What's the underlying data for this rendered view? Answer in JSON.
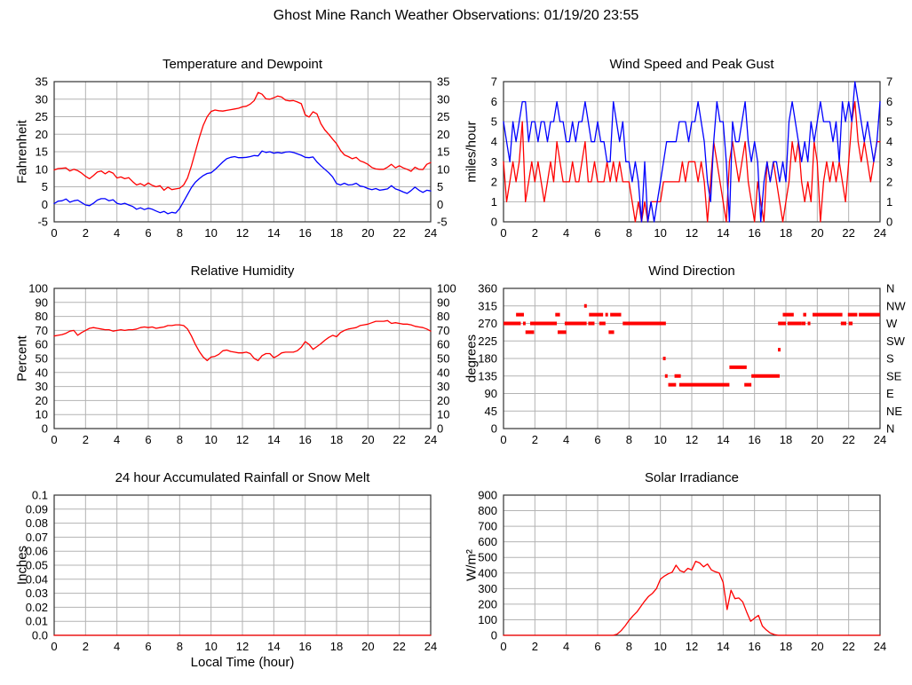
{
  "page": {
    "title": "Ghost Mine Ranch Weather Observations: 01/19/20 23:55"
  },
  "colors": {
    "red": "#ff0000",
    "blue": "#0000ff",
    "grid": "#b3b3b3",
    "frame": "#333333"
  },
  "chart_data": [
    {
      "id": "temperature-dewpoint",
      "type": "line",
      "title": "Temperature and Dewpoint",
      "ylabel": "Fahrenheit",
      "xlim": [
        0,
        24
      ],
      "ylim": [
        -5,
        35
      ],
      "xtick_labels": [
        "0",
        "2",
        "4",
        "6",
        "8",
        "10",
        "12",
        "14",
        "16",
        "18",
        "20",
        "22",
        "24"
      ],
      "ytick_labels": [
        "-5",
        "0",
        "5",
        "10",
        "15",
        "20",
        "25",
        "30",
        "35"
      ],
      "ytick_labels_right": [
        "-5",
        "0",
        "5",
        "10",
        "15",
        "20",
        "25",
        "30",
        "35"
      ],
      "grid": true,
      "legend": "none",
      "series": [
        {
          "name": "Temperature",
          "color": "#ff0000",
          "x0": 0,
          "dx": 0.25,
          "values": [
            9.8,
            10.2,
            10.3,
            10.4,
            9.5,
            10.0,
            9.6,
            8.9,
            8.0,
            7.3,
            8.2,
            9.2,
            9.5,
            8.7,
            9.4,
            8.9,
            7.5,
            7.8,
            7.3,
            7.6,
            6.5,
            5.5,
            5.9,
            5.3,
            6.1,
            5.4,
            5.0,
            5.3,
            4.0,
            4.9,
            4.2,
            4.4,
            4.6,
            5.5,
            7.5,
            11.0,
            15.0,
            19.0,
            22.5,
            25.0,
            26.5,
            26.9,
            26.7,
            26.6,
            26.8,
            27.0,
            27.2,
            27.4,
            27.8,
            28.0,
            28.6,
            29.6,
            31.9,
            31.4,
            30.1,
            30.0,
            30.4,
            30.9,
            30.6,
            29.7,
            29.5,
            29.6,
            29.2,
            28.7,
            25.5,
            24.9,
            26.4,
            25.8,
            23.0,
            21.2,
            20.0,
            18.6,
            17.3,
            15.4,
            14.1,
            13.6,
            13.0,
            13.4,
            12.4,
            12.0,
            11.4,
            10.5,
            10.1,
            10.0,
            10.0,
            10.6,
            11.4,
            10.4,
            11.0,
            10.4,
            10.0,
            9.4,
            10.6,
            10.0,
            9.9,
            11.4,
            11.9
          ]
        },
        {
          "name": "Dewpoint",
          "color": "#0000ff",
          "x0": 0,
          "dx": 0.25,
          "values": [
            0.2,
            0.9,
            1.0,
            1.5,
            0.6,
            1.0,
            1.2,
            0.5,
            -0.2,
            -0.4,
            0.3,
            1.2,
            1.6,
            1.6,
            1.0,
            1.3,
            0.3,
            0.0,
            0.3,
            -0.2,
            -0.6,
            -1.4,
            -1.0,
            -1.5,
            -1.1,
            -1.4,
            -1.9,
            -2.4,
            -2.0,
            -2.7,
            -2.3,
            -2.5,
            -1.2,
            0.8,
            2.8,
            4.8,
            6.3,
            7.3,
            8.2,
            8.8,
            9.0,
            9.9,
            11.0,
            12.1,
            13.0,
            13.4,
            13.6,
            13.3,
            13.3,
            13.4,
            13.6,
            13.9,
            13.8,
            15.2,
            14.8,
            15.0,
            14.6,
            14.8,
            14.6,
            14.9,
            15.0,
            14.8,
            14.4,
            14.0,
            13.4,
            13.3,
            13.5,
            12.1,
            11.0,
            10.0,
            9.0,
            7.8,
            5.9,
            5.5,
            6.0,
            5.5,
            5.6,
            6.0,
            5.2,
            5.0,
            4.5,
            4.2,
            4.5,
            4.0,
            4.2,
            4.4,
            5.3,
            4.4,
            4.0,
            3.5,
            3.1,
            3.9,
            4.9,
            4.0,
            3.4,
            4.0,
            3.8
          ]
        }
      ]
    },
    {
      "id": "wind-speed-gust",
      "type": "line",
      "title": "Wind Speed and Peak Gust",
      "ylabel": "miles/hour",
      "xlim": [
        0,
        24
      ],
      "ylim": [
        0,
        7
      ],
      "xtick_labels": [
        "0",
        "2",
        "4",
        "6",
        "8",
        "10",
        "12",
        "14",
        "16",
        "18",
        "20",
        "22",
        "24"
      ],
      "ytick_labels": [
        "0",
        "1",
        "2",
        "3",
        "4",
        "5",
        "6",
        "7"
      ],
      "ytick_labels_right": [
        "0",
        "1",
        "2",
        "3",
        "4",
        "5",
        "6",
        "7"
      ],
      "grid": true,
      "legend": "none",
      "series": [
        {
          "name": "Wind Speed",
          "color": "#ff0000",
          "x0": 0,
          "dx": 0.2,
          "values": [
            3,
            1,
            2,
            3,
            2,
            3,
            5,
            1,
            2,
            3,
            2,
            3,
            2,
            1,
            2,
            3,
            2,
            4,
            3,
            2,
            2,
            2,
            3,
            2,
            2,
            3,
            4,
            2,
            2,
            3,
            2,
            2,
            2,
            3,
            2,
            3,
            2,
            3,
            2,
            2,
            2,
            1,
            0,
            1,
            0,
            1,
            0,
            1,
            1,
            1,
            1,
            2,
            2,
            2,
            2,
            2,
            2,
            3,
            2,
            3,
            3,
            3,
            2,
            3,
            2,
            0,
            2,
            4,
            3,
            2,
            1,
            0,
            3,
            4,
            3,
            2,
            3,
            4,
            2,
            1,
            0,
            2,
            1,
            0,
            3,
            2,
            3,
            2,
            1,
            0,
            1,
            2,
            4,
            3,
            4,
            2,
            1,
            2,
            1,
            4,
            3,
            0,
            2,
            3,
            2,
            3,
            2,
            3,
            2,
            1,
            3,
            5,
            6,
            4,
            3,
            4,
            3,
            2,
            3,
            4,
            4
          ]
        },
        {
          "name": "Peak Gust",
          "color": "#0000ff",
          "x0": 0,
          "dx": 0.2,
          "values": [
            5,
            4,
            3,
            5,
            4,
            5,
            6,
            6,
            4,
            5,
            5,
            4,
            5,
            5,
            4,
            5,
            5,
            6,
            5,
            5,
            4,
            4,
            5,
            4,
            5,
            5,
            6,
            5,
            4,
            4,
            5,
            4,
            4,
            3,
            3,
            6,
            5,
            4,
            5,
            3,
            3,
            2,
            3,
            2,
            0,
            3,
            0,
            1,
            0,
            1,
            2,
            3,
            4,
            4,
            4,
            4,
            5,
            5,
            5,
            4,
            5,
            5,
            6,
            5,
            4,
            2,
            1,
            4,
            6,
            5,
            5,
            3,
            0,
            5,
            4,
            4,
            5,
            6,
            4,
            3,
            4,
            3,
            0,
            2,
            3,
            2,
            3,
            3,
            2,
            3,
            2,
            5,
            6,
            5,
            4,
            3,
            4,
            3,
            5,
            4,
            5,
            6,
            5,
            5,
            5,
            4,
            5,
            3,
            6,
            5,
            6,
            5,
            7,
            6,
            5,
            4,
            5,
            4,
            3,
            4,
            6
          ]
        }
      ]
    },
    {
      "id": "relative-humidity",
      "type": "line",
      "title": "Relative Humidity",
      "ylabel": "Percent",
      "xlim": [
        0,
        24
      ],
      "ylim": [
        0,
        100
      ],
      "xtick_labels": [
        "0",
        "2",
        "4",
        "6",
        "8",
        "10",
        "12",
        "14",
        "16",
        "18",
        "20",
        "22",
        "24"
      ],
      "ytick_labels": [
        "0",
        "10",
        "20",
        "30",
        "40",
        "50",
        "60",
        "70",
        "80",
        "90",
        "100"
      ],
      "ytick_labels_right": [
        "0",
        "10",
        "20",
        "30",
        "40",
        "50",
        "60",
        "70",
        "80",
        "90",
        "100"
      ],
      "grid": true,
      "legend": "none",
      "series": [
        {
          "name": "Relative Humidity",
          "color": "#ff0000",
          "x0": 0,
          "dx": 0.25,
          "values": [
            66,
            66.5,
            67,
            68,
            69.5,
            70,
            66.5,
            68.5,
            70,
            71.5,
            72,
            71.5,
            71,
            70.5,
            70.5,
            69.5,
            70,
            70.5,
            70,
            70.5,
            70.5,
            71,
            72,
            72.5,
            72,
            72.5,
            71.5,
            72,
            72.5,
            73.5,
            73.5,
            74,
            74,
            73.5,
            71,
            66,
            60,
            55,
            51,
            48.5,
            51,
            51.5,
            53,
            55.5,
            56,
            55,
            54.5,
            54,
            54,
            54.5,
            53.5,
            50,
            48.5,
            52,
            53.5,
            53.5,
            50.5,
            52,
            54,
            54.5,
            54.5,
            54.5,
            55.5,
            58,
            62,
            60,
            56.5,
            58.5,
            60.5,
            63,
            65,
            66.5,
            65.5,
            68.5,
            70,
            71,
            71.5,
            72,
            73.5,
            74,
            74.5,
            75.5,
            76.5,
            76.5,
            76.5,
            77,
            75,
            75.5,
            75,
            74.5,
            74.5,
            74,
            73,
            72.5,
            72,
            71,
            69.5
          ]
        }
      ]
    },
    {
      "id": "wind-direction",
      "type": "scatter",
      "title": "Wind Direction",
      "ylabel": "degrees",
      "xlim": [
        0,
        24
      ],
      "ylim": [
        0,
        360
      ],
      "xtick_labels": [
        "0",
        "2",
        "4",
        "6",
        "8",
        "10",
        "12",
        "14",
        "16",
        "18",
        "20",
        "22",
        "24"
      ],
      "ytick_labels": [
        "0",
        "45",
        "90",
        "135",
        "180",
        "225",
        "270",
        "315",
        "360"
      ],
      "ytick_labels_right": [
        "N",
        "NE",
        "E",
        "SE",
        "S",
        "SW",
        "W",
        "NW",
        "N"
      ],
      "grid": true,
      "legend": "none",
      "segment_color": "#ff0000",
      "segments": [
        [
          0.0,
          1.1,
          270
        ],
        [
          0.8,
          1.3,
          292.5
        ],
        [
          1.25,
          1.4,
          270
        ],
        [
          1.4,
          1.95,
          247.5
        ],
        [
          1.7,
          3.4,
          270
        ],
        [
          3.3,
          3.6,
          292.5
        ],
        [
          3.45,
          4.0,
          247.5
        ],
        [
          3.9,
          5.3,
          270
        ],
        [
          5.15,
          5.3,
          315
        ],
        [
          5.45,
          6.35,
          292.5
        ],
        [
          5.4,
          5.8,
          270
        ],
        [
          6.1,
          6.5,
          270
        ],
        [
          6.5,
          6.65,
          292.5
        ],
        [
          6.7,
          7.05,
          247.5
        ],
        [
          6.8,
          7.5,
          292.5
        ],
        [
          7.6,
          10.35,
          270
        ],
        [
          10.2,
          10.3,
          180
        ],
        [
          10.3,
          10.45,
          135
        ],
        [
          10.5,
          11.0,
          112.5
        ],
        [
          10.9,
          11.3,
          135
        ],
        [
          11.2,
          14.4,
          112.5
        ],
        [
          14.4,
          15.5,
          157.5
        ],
        [
          15.35,
          15.8,
          112.5
        ],
        [
          15.8,
          17.6,
          135
        ],
        [
          17.5,
          17.65,
          202.5
        ],
        [
          17.5,
          18.0,
          270
        ],
        [
          17.8,
          18.5,
          292.5
        ],
        [
          18.1,
          19.0,
          270
        ],
        [
          19.1,
          19.3,
          292.5
        ],
        [
          19.0,
          19.25,
          270
        ],
        [
          19.4,
          19.55,
          270
        ],
        [
          19.7,
          21.6,
          292.5
        ],
        [
          21.5,
          21.85,
          270
        ],
        [
          22.0,
          22.25,
          270
        ],
        [
          21.95,
          22.55,
          292.5
        ],
        [
          22.65,
          24.0,
          292.5
        ]
      ]
    },
    {
      "id": "rainfall",
      "type": "line",
      "title": "24 hour Accumulated Rainfall or Snow Melt",
      "ylabel": "Inches",
      "xlabel": "Local Time (hour)",
      "xlim": [
        0,
        24
      ],
      "ylim": [
        0,
        0.1
      ],
      "xtick_labels": [
        "0",
        "2",
        "4",
        "6",
        "8",
        "10",
        "12",
        "14",
        "16",
        "18",
        "20",
        "22",
        "24"
      ],
      "ytick_labels": [
        "0.0",
        "0.01",
        "0.02",
        "0.03",
        "0.04",
        "0.05",
        "0.06",
        "0.07",
        "0.08",
        "0.09",
        "0.1"
      ],
      "grid": true,
      "legend": "none",
      "series": [
        {
          "name": "Accumulated Rainfall",
          "color": "#ff0000",
          "x0": 0,
          "dx": 24,
          "values": [
            0,
            0
          ]
        }
      ]
    },
    {
      "id": "solar-irradiance",
      "type": "line",
      "title": "Solar Irradiance",
      "ylabel": "W/m²",
      "xlim": [
        0,
        24
      ],
      "ylim": [
        0,
        900
      ],
      "xtick_labels": [
        "0",
        "2",
        "4",
        "6",
        "8",
        "10",
        "12",
        "14",
        "16",
        "18",
        "20",
        "22",
        "24"
      ],
      "ytick_labels": [
        "0",
        "100",
        "200",
        "300",
        "400",
        "500",
        "600",
        "700",
        "800",
        "900"
      ],
      "grid": true,
      "legend": "none",
      "series": [
        {
          "name": "Solar Irradiance",
          "color": "#ff0000",
          "x0": 0,
          "dx": 0.25,
          "values": [
            0,
            0,
            0,
            0,
            0,
            0,
            0,
            0,
            0,
            0,
            0,
            0,
            0,
            0,
            0,
            0,
            0,
            0,
            0,
            0,
            0,
            0,
            0,
            0,
            0,
            0,
            0,
            0,
            0,
            8,
            30,
            60,
            95,
            125,
            150,
            185,
            220,
            250,
            270,
            300,
            360,
            380,
            395,
            405,
            450,
            415,
            405,
            430,
            420,
            475,
            465,
            440,
            458,
            420,
            408,
            400,
            340,
            165,
            290,
            235,
            240,
            215,
            150,
            90,
            110,
            128,
            60,
            35,
            15,
            5,
            0,
            0,
            0,
            0,
            0,
            0,
            0,
            0,
            0,
            0,
            0,
            0,
            0,
            0,
            0,
            0,
            0,
            0,
            0,
            0,
            0,
            0,
            0,
            0,
            0,
            0,
            0
          ]
        }
      ]
    }
  ]
}
